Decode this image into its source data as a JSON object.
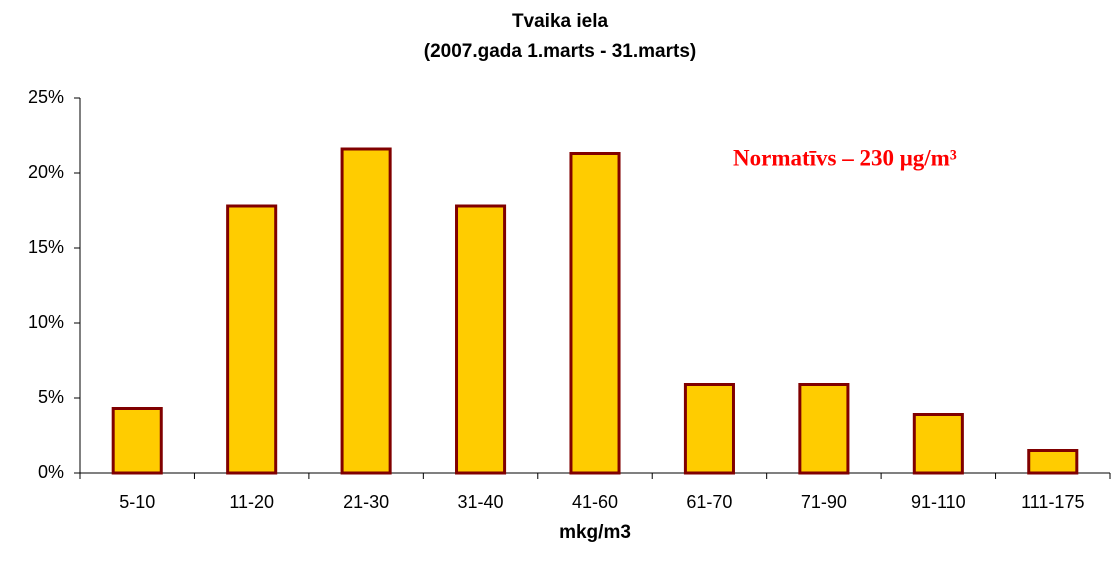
{
  "chart_data": {
    "type": "bar",
    "title": "Tvaika iela",
    "subtitle": "(2007.gada 1.marts - 31.marts)",
    "x_label": "mkg/m3",
    "annotation": "Normatīvs – 230 μg/m³",
    "categories": [
      "5-10",
      "11-20",
      "21-30",
      "31-40",
      "41-60",
      "61-70",
      "71-90",
      "91-110",
      "111-175"
    ],
    "values": [
      4.3,
      17.8,
      21.6,
      17.8,
      21.3,
      5.9,
      5.9,
      3.9,
      1.5
    ],
    "color": "#ffcc00",
    "edge_color": "#800000",
    "ylim": [
      0,
      25
    ],
    "yticks": [
      {
        "value": 0,
        "label": "0%"
      },
      {
        "value": 5,
        "label": "5%"
      },
      {
        "value": 10,
        "label": "10%"
      },
      {
        "value": 15,
        "label": "15%"
      },
      {
        "value": 20,
        "label": "20%"
      },
      {
        "value": 25,
        "label": "25%"
      }
    ],
    "grid": false
  }
}
